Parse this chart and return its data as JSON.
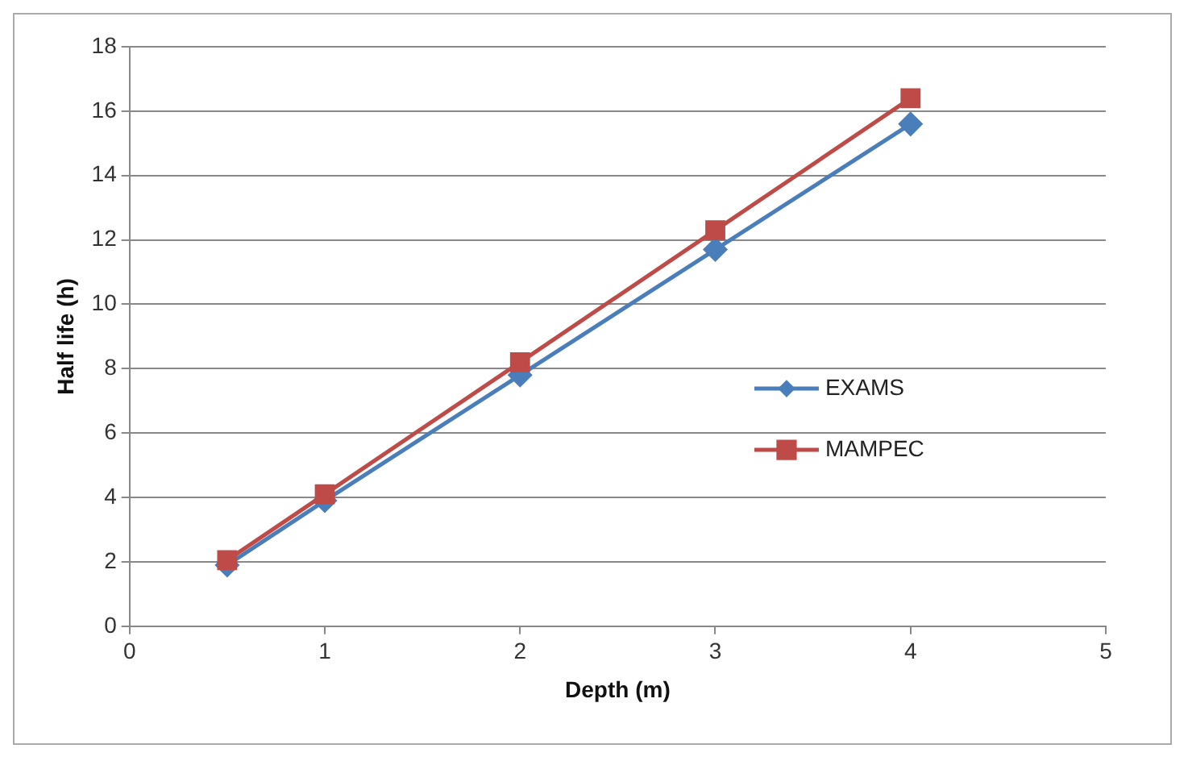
{
  "chart_data": {
    "type": "line",
    "xlabel": "Depth (m)",
    "ylabel": "Half life (h)",
    "x": [
      0.5,
      1,
      2,
      3,
      4
    ],
    "series": [
      {
        "name": "EXAMS",
        "color": "#4a7ebb",
        "values": [
          1.9,
          3.9,
          7.8,
          11.7,
          15.6
        ],
        "marker": "diamond"
      },
      {
        "name": "MAMPEC",
        "color": "#be4b48",
        "values": [
          2.05,
          4.1,
          8.2,
          12.3,
          16.4
        ],
        "marker": "square"
      }
    ],
    "xlim": [
      0,
      5
    ],
    "xticks": [
      0,
      1,
      2,
      3,
      4,
      5
    ],
    "ylim": [
      0,
      18
    ],
    "yticks": [
      0,
      2,
      4,
      6,
      8,
      10,
      12,
      14,
      16,
      18
    ],
    "grid": "y",
    "legend": "right"
  }
}
